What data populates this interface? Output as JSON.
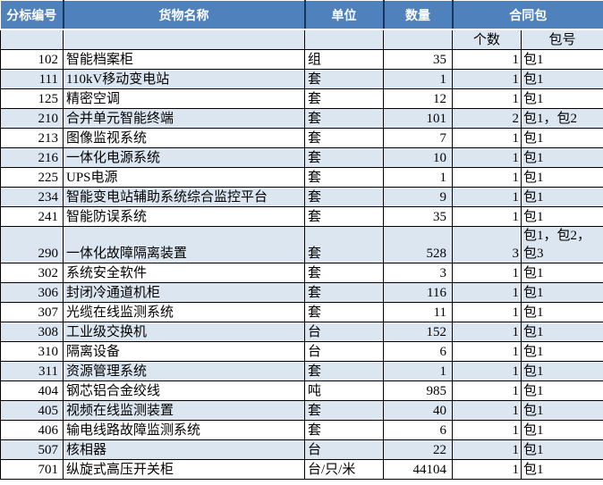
{
  "table": {
    "headers": {
      "bid": "分标编号",
      "name": "货物名称",
      "unit": "单位",
      "qty": "数量",
      "package": "合同包",
      "pkg_count": "个数",
      "pkg_no": "包号"
    },
    "rows": [
      {
        "bid": "102",
        "name": "智能档案柜",
        "unit": "组",
        "qty": "35",
        "pkg_count": "1",
        "pkg_no": "包1"
      },
      {
        "bid": "111",
        "name": "110kV移动变电站",
        "unit": "套",
        "qty": "1",
        "pkg_count": "1",
        "pkg_no": "包1"
      },
      {
        "bid": "125",
        "name": "精密空调",
        "unit": "套",
        "qty": "12",
        "pkg_count": "1",
        "pkg_no": "包1"
      },
      {
        "bid": "210",
        "name": "合并单元智能终端",
        "unit": "套",
        "qty": "101",
        "pkg_count": "2",
        "pkg_no": "包1，包2"
      },
      {
        "bid": "213",
        "name": "图像监视系统",
        "unit": "套",
        "qty": "7",
        "pkg_count": "1",
        "pkg_no": "包1"
      },
      {
        "bid": "216",
        "name": "一体化电源系统",
        "unit": "套",
        "qty": "10",
        "pkg_count": "1",
        "pkg_no": "包1"
      },
      {
        "bid": "225",
        "name": "UPS电源",
        "unit": "套",
        "qty": "1",
        "pkg_count": "1",
        "pkg_no": "包1"
      },
      {
        "bid": "234",
        "name": "智能变电站辅助系统综合监控平台",
        "unit": "套",
        "qty": "9",
        "pkg_count": "1",
        "pkg_no": "包1"
      },
      {
        "bid": "241",
        "name": "智能防误系统",
        "unit": "套",
        "qty": "35",
        "pkg_count": "1",
        "pkg_no": "包1"
      },
      {
        "bid": "290",
        "name": "一体化故障隔离装置",
        "unit": "套",
        "qty": "528",
        "pkg_count": "3",
        "pkg_no": "包1，包2，包3"
      },
      {
        "bid": "302",
        "name": "系统安全软件",
        "unit": "套",
        "qty": "3",
        "pkg_count": "1",
        "pkg_no": "包1"
      },
      {
        "bid": "306",
        "name": "封闭冷通道机柜",
        "unit": "套",
        "qty": "116",
        "pkg_count": "1",
        "pkg_no": "包1"
      },
      {
        "bid": "307",
        "name": "光缆在线监测系统",
        "unit": "套",
        "qty": "11",
        "pkg_count": "1",
        "pkg_no": "包1"
      },
      {
        "bid": "308",
        "name": "工业级交换机",
        "unit": "台",
        "qty": "152",
        "pkg_count": "1",
        "pkg_no": "包1"
      },
      {
        "bid": "310",
        "name": "隔离设备",
        "unit": "台",
        "qty": "6",
        "pkg_count": "1",
        "pkg_no": "包1"
      },
      {
        "bid": "311",
        "name": "资源管理系统",
        "unit": "套",
        "qty": "1",
        "pkg_count": "1",
        "pkg_no": "包1"
      },
      {
        "bid": "404",
        "name": "钢芯铝合金绞线",
        "unit": "吨",
        "qty": "985",
        "pkg_count": "1",
        "pkg_no": "包1"
      },
      {
        "bid": "405",
        "name": "视频在线监测装置",
        "unit": "套",
        "qty": "40",
        "pkg_count": "1",
        "pkg_no": "包1"
      },
      {
        "bid": "406",
        "name": "输电线路故障监测系统",
        "unit": "套",
        "qty": "6",
        "pkg_count": "1",
        "pkg_no": "包1"
      },
      {
        "bid": "507",
        "name": "核相器",
        "unit": "台",
        "qty": "22",
        "pkg_count": "1",
        "pkg_no": "包1"
      },
      {
        "bid": "701",
        "name": "纵旋式高压开关柜",
        "unit": "台/只/米",
        "qty": "44104",
        "pkg_count": "1",
        "pkg_no": "包1"
      }
    ],
    "colors": {
      "header_bg": "#4f81bd",
      "header_text": "#ffffff",
      "band_bg": "#dce6f1",
      "grid": "#000000"
    }
  }
}
